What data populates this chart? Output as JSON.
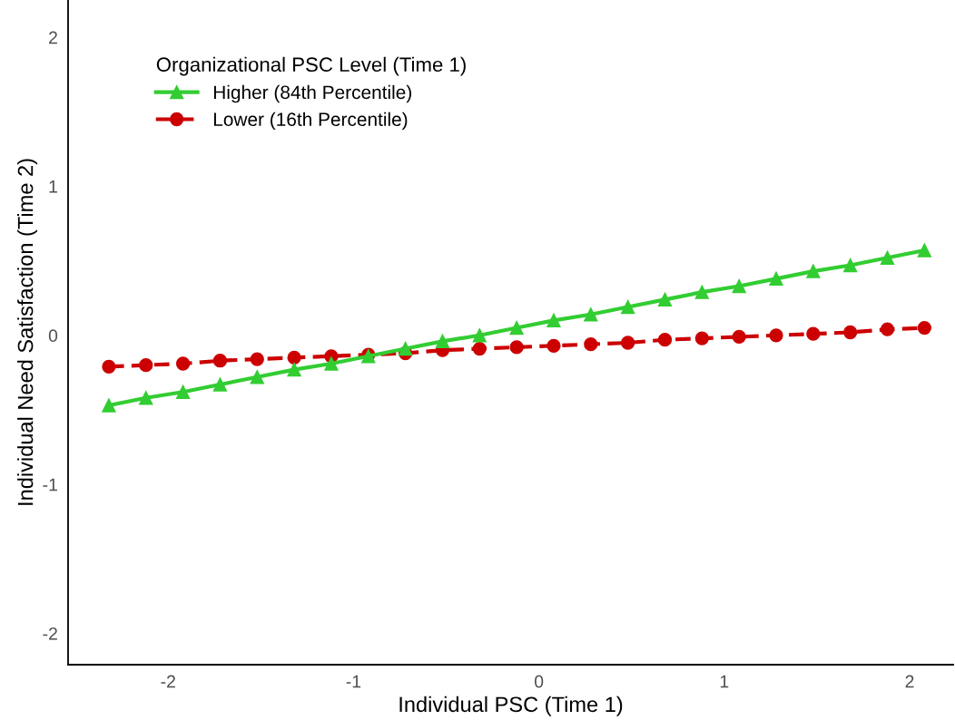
{
  "chart_data": {
    "type": "line",
    "xlabel": "Individual PSC (Time 1)",
    "ylabel": "Individual Need Satisfaction (Time 2)",
    "legend_title": "Organizational PSC Level (Time 1)",
    "x": [
      -2.32,
      -2.12,
      -1.92,
      -1.72,
      -1.52,
      -1.32,
      -1.12,
      -0.92,
      -0.72,
      -0.52,
      -0.32,
      -0.12,
      0.08,
      0.28,
      0.48,
      0.68,
      0.88,
      1.08,
      1.28,
      1.48,
      1.68,
      1.88,
      2.08
    ],
    "series": [
      {
        "name": "Higher (84th Percentile)",
        "color": "#32cd32",
        "marker": "triangle",
        "line_style": "solid",
        "values": [
          -0.47,
          -0.42,
          -0.38,
          -0.33,
          -0.28,
          -0.23,
          -0.19,
          -0.14,
          -0.09,
          -0.04,
          0.0,
          0.05,
          0.1,
          0.14,
          0.19,
          0.24,
          0.29,
          0.33,
          0.38,
          0.43,
          0.47,
          0.52,
          0.57
        ]
      },
      {
        "name": "Lower (16th Percentile)",
        "color": "#cc0000",
        "marker": "circle",
        "line_style": "dashed",
        "values": [
          -0.21,
          -0.2,
          -0.19,
          -0.17,
          -0.16,
          -0.15,
          -0.14,
          -0.13,
          -0.12,
          -0.1,
          -0.09,
          -0.08,
          -0.07,
          -0.06,
          -0.05,
          -0.03,
          -0.02,
          -0.01,
          0.0,
          0.01,
          0.02,
          0.04,
          0.05
        ]
      }
    ],
    "xlim": [
      -2.54,
      2.235
    ],
    "ylim": [
      -2.21,
      2.25
    ],
    "xticks": [
      {
        "value": -2,
        "label": "-2"
      },
      {
        "value": -1,
        "label": "-1"
      },
      0,
      1,
      2
    ],
    "yticks": [
      {
        "value": -2,
        "label": "-2"
      },
      {
        "value": -1,
        "label": "-1"
      },
      0,
      1,
      2
    ],
    "grid": false,
    "legend": "top left"
  }
}
